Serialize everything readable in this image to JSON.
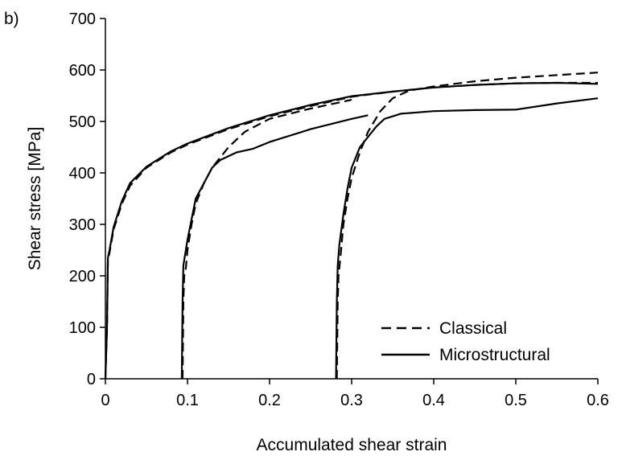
{
  "chart_data": {
    "type": "line",
    "panel_label": "b)",
    "xlabel": "Accumulated shear strain",
    "ylabel": "Shear stress [MPa]",
    "xlim": [
      0,
      0.6
    ],
    "ylim": [
      0,
      700
    ],
    "xticks": [
      0,
      0.1,
      0.2,
      0.3,
      0.4,
      0.5,
      0.6
    ],
    "xtick_labels": [
      "0",
      "0.1",
      "0.2",
      "0.3",
      "0.4",
      "0.5",
      "0.6"
    ],
    "yticks": [
      0,
      100,
      200,
      300,
      400,
      500,
      600,
      700
    ],
    "ytick_labels": [
      "0",
      "100",
      "200",
      "300",
      "400",
      "500",
      "600",
      "700"
    ],
    "grid": false,
    "legend_position": "bottom-right",
    "legend": [
      {
        "label": "Classical",
        "style": "dashed"
      },
      {
        "label": "Microstructural",
        "style": "solid"
      }
    ],
    "series": [
      {
        "group": "Classical",
        "style": "dashed",
        "x": [
          0.0,
          0.002,
          0.003,
          0.005,
          0.01,
          0.02,
          0.03,
          0.05,
          0.08,
          0.1,
          0.15,
          0.2,
          0.25,
          0.3,
          0.35,
          0.4,
          0.45,
          0.5,
          0.55,
          0.6
        ],
        "y": [
          0,
          100,
          230,
          245,
          290,
          340,
          375,
          410,
          440,
          455,
          485,
          510,
          530,
          548,
          558,
          566,
          571,
          574,
          575,
          575
        ]
      },
      {
        "group": "Classical",
        "style": "dashed",
        "x": [
          0.094,
          0.095,
          0.096,
          0.098,
          0.1,
          0.105,
          0.11,
          0.12,
          0.13,
          0.15,
          0.17,
          0.2,
          0.25,
          0.3
        ],
        "y": [
          0,
          150,
          200,
          215,
          250,
          300,
          340,
          380,
          410,
          450,
          480,
          505,
          525,
          542
        ]
      },
      {
        "group": "Classical",
        "style": "dashed",
        "x": [
          0.282,
          0.283,
          0.284,
          0.286,
          0.29,
          0.295,
          0.3,
          0.31,
          0.32,
          0.335,
          0.35,
          0.37,
          0.4,
          0.45,
          0.5,
          0.55,
          0.6
        ],
        "y": [
          0,
          150,
          200,
          230,
          300,
          350,
          390,
          440,
          480,
          520,
          545,
          560,
          568,
          578,
          585,
          590,
          595
        ]
      },
      {
        "group": "Microstructural",
        "style": "solid",
        "x": [
          0.0,
          0.002,
          0.003,
          0.005,
          0.01,
          0.02,
          0.03,
          0.05,
          0.08,
          0.1,
          0.15,
          0.2,
          0.25,
          0.3,
          0.35,
          0.4,
          0.45,
          0.5,
          0.55,
          0.6
        ],
        "y": [
          0,
          100,
          235,
          250,
          295,
          345,
          380,
          412,
          442,
          457,
          487,
          512,
          532,
          549,
          558,
          566,
          571,
          574,
          575,
          573
        ]
      },
      {
        "group": "Microstructural",
        "style": "solid",
        "x": [
          0.093,
          0.094,
          0.095,
          0.097,
          0.1,
          0.105,
          0.11,
          0.12,
          0.13,
          0.14,
          0.16,
          0.18,
          0.2,
          0.25,
          0.3,
          0.32
        ],
        "y": [
          0,
          150,
          220,
          240,
          270,
          310,
          350,
          380,
          410,
          425,
          440,
          447,
          460,
          485,
          505,
          512
        ]
      },
      {
        "group": "Microstructural",
        "style": "solid",
        "x": [
          0.281,
          0.282,
          0.283,
          0.285,
          0.29,
          0.295,
          0.3,
          0.31,
          0.32,
          0.33,
          0.34,
          0.36,
          0.4,
          0.45,
          0.5,
          0.55,
          0.6
        ],
        "y": [
          0,
          150,
          220,
          260,
          320,
          370,
          410,
          450,
          470,
          490,
          505,
          515,
          520,
          522,
          523,
          535,
          545
        ]
      }
    ]
  }
}
